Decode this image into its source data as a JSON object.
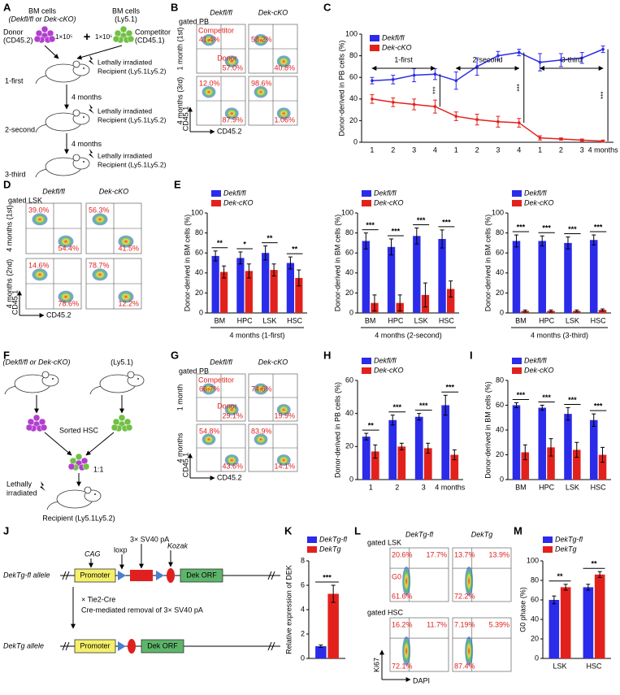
{
  "panel_labels": [
    "A",
    "B",
    "C",
    "D",
    "E",
    "F",
    "G",
    "H",
    "I",
    "J",
    "K",
    "L",
    "M"
  ],
  "diagram_a": {
    "donor_title": "BM cells",
    "donor_genotype": "(Dekfl/fl or Dek-cKO)",
    "donor_label": "Donor",
    "donor_marker": "(CD45.2)",
    "donor_dose": "1×10⁵",
    "plus": "+",
    "competitor_title": "BM cells",
    "competitor_strain": "(Ly5.1)",
    "competitor_dose": "1×10⁶",
    "competitor_label": "Competitor",
    "competitor_marker": "(CD45.1)",
    "steps": [
      {
        "label": "1-first",
        "irradiation": "Lethally irradiated",
        "recipient": "Recipient (Ly5.1Ly5.2)"
      },
      {
        "label": "2-second",
        "irradiation": "Lethally irradiated",
        "recipient": "Recipient (Ly5.1Ly5.2)"
      },
      {
        "label": "3-third",
        "irradiation": "Lethally irradiated",
        "recipient": "Recipient (Ly5.1Ly5.2)"
      }
    ],
    "intervals": [
      "4 months",
      "4 months"
    ]
  },
  "flow_b": {
    "gate": "gated PB",
    "columns": [
      "Dekfl/fl",
      "Dek-cKO"
    ],
    "competitor": "Competitor",
    "donor": "Donor",
    "y_axis": "CD45.1",
    "x_axis": "CD45.2",
    "rows": [
      {
        "label": "1 month (1st)",
        "percents": [
          [
            "41.4%",
            "57.0%"
          ],
          [
            "58.2%",
            "40.8%"
          ]
        ]
      },
      {
        "label": "4 months (3rd)",
        "percents": [
          [
            "12.0%",
            "87.9%"
          ],
          [
            "98.6%",
            "1.06%"
          ]
        ]
      }
    ]
  },
  "flow_d": {
    "gate": "gated LSK",
    "columns": [
      "Dekfl/fl",
      "Dek-cKO"
    ],
    "y_axis": "CD45.1",
    "x_axis": "CD45.2",
    "rows": [
      {
        "label": "4 months (1st)",
        "percents": [
          [
            "39.0%",
            "54.4%"
          ],
          [
            "56.3%",
            "41.5%"
          ]
        ]
      },
      {
        "label": "4 months (2nd)",
        "percents": [
          [
            "14.6%",
            "78.6%"
          ],
          [
            "78.7%",
            "12.2%"
          ]
        ]
      }
    ]
  },
  "diagram_f": {
    "donor_genotype": "(Dekfl/fl or Dek-cKO)",
    "competitor_strain": "(Ly5.1)",
    "sorted": "Sorted HSC",
    "ratio": "1:1",
    "irradiation_lines": [
      "Lethally",
      "irradiated"
    ],
    "recipient": "Recipient (Ly5.1Ly5.2)"
  },
  "flow_g": {
    "gate": "gated PB",
    "columns": [
      "Dekfl/fl",
      "Dek-cKO"
    ],
    "competitor": "Competitor",
    "donor": "Donor",
    "y_axis": "CD45.1",
    "x_axis": "CD45.2",
    "rows": [
      {
        "label": "1 month",
        "percents": [
          [
            "66.7%",
            "29.1%"
          ],
          [
            "74.6%",
            "19.9%"
          ]
        ]
      },
      {
        "label": "4 months",
        "percents": [
          [
            "54.8%",
            "43.6%"
          ],
          [
            "83.9%",
            "14.1%"
          ]
        ]
      }
    ]
  },
  "diagram_j": {
    "top_allele": "DekTg-fl allele",
    "bottom_allele": "DekTg allele",
    "promoter": "Promoter",
    "orf": "Dek ORF",
    "cag": "CAG",
    "loxp": "loxp",
    "stop": "3× SV40 pA",
    "kozak": "Kozak",
    "cre": "× Tie2-Cre",
    "removal": "Cre-mediated removal of 3× SV40 pA"
  },
  "flow_l": {
    "columns": [
      "DekTg-fl",
      "DekTg"
    ],
    "g0": "G0",
    "y_axis": "Ki67",
    "x_axis": "DAPI",
    "rows": [
      {
        "gate": "gated LSK",
        "percents": [
          [
            "20.6%",
            "17.7%",
            "61.6%"
          ],
          [
            "13.7%",
            "13.9%",
            "72.2%"
          ]
        ]
      },
      {
        "gate": "gated HSC",
        "percents": [
          [
            "16.2%",
            "11.7%",
            "72.1%"
          ],
          [
            "7.19%",
            "5.39%",
            "87.4%"
          ]
        ]
      }
    ]
  },
  "chart_data": [
    {
      "type": "line",
      "ylabel": "Donor-derived in PB cells (%)",
      "categories": [
        "1",
        "2",
        "3",
        "4",
        "1",
        "2",
        "3",
        "4",
        "1",
        "2",
        "3",
        "4 months"
      ],
      "series": [
        {
          "name": "Dekfl/fl",
          "color": "#2b2bea",
          "values": [
            57,
            58,
            62,
            63,
            57,
            70,
            80,
            83,
            74,
            76,
            78,
            86
          ],
          "errors": [
            3,
            4,
            6,
            5,
            8,
            8,
            4,
            3,
            8,
            6,
            5,
            3
          ]
        },
        {
          "name": "Dek-cKO",
          "color": "#e3211c",
          "values": [
            40,
            37,
            35,
            33,
            24,
            21,
            19,
            18,
            4,
            3,
            2,
            1
          ],
          "errors": [
            4,
            4,
            5,
            6,
            4,
            5,
            5,
            4,
            2,
            1,
            1,
            1
          ]
        }
      ],
      "ylim": [
        0,
        100
      ],
      "yticks": [
        0,
        20,
        40,
        60,
        80,
        100
      ],
      "periods": [
        "1-first",
        "2-second",
        "3-third"
      ],
      "significance": [
        "***",
        "***",
        "***"
      ]
    },
    {
      "type": "bar",
      "ylabel": "Donor-derived in BM cells (%)",
      "xlabel": "4 months (1-first)",
      "categories": [
        "BM",
        "HPC",
        "LSK",
        "HSC"
      ],
      "series": [
        {
          "name": "Dekfl/fl",
          "color": "#2b2bea",
          "values": [
            57,
            55,
            60,
            50
          ],
          "errors": [
            5,
            6,
            7,
            6
          ]
        },
        {
          "name": "Dek-cKO",
          "color": "#e3211c",
          "values": [
            41,
            42,
            43,
            35
          ],
          "errors": [
            6,
            7,
            6,
            8
          ]
        }
      ],
      "ylim": [
        0,
        100
      ],
      "yticks": [
        0,
        20,
        40,
        60,
        80,
        100
      ],
      "significance": [
        "**",
        "*",
        "**",
        "**"
      ]
    },
    {
      "type": "bar",
      "ylabel": "Donor-derived in BM cells (%)",
      "xlabel": "4 months (2-second)",
      "categories": [
        "BM",
        "HPC",
        "LSK",
        "HSC"
      ],
      "series": [
        {
          "name": "Dekfl/fl",
          "color": "#2b2bea",
          "values": [
            72,
            66,
            77,
            74
          ],
          "errors": [
            8,
            8,
            8,
            9
          ]
        },
        {
          "name": "Dek-cKO",
          "color": "#e3211c",
          "values": [
            10,
            10,
            18,
            24
          ],
          "errors": [
            8,
            8,
            12,
            8
          ]
        }
      ],
      "ylim": [
        0,
        100
      ],
      "yticks": [
        0,
        20,
        40,
        60,
        80,
        100
      ],
      "significance": [
        "***",
        "***",
        "***",
        "***"
      ]
    },
    {
      "type": "bar",
      "ylabel": "Donor-derived in BM cells (%)",
      "xlabel": "4 months (3-third)",
      "categories": [
        "BM",
        "HPC",
        "LSK",
        "HSC"
      ],
      "series": [
        {
          "name": "Dekfl/fl",
          "color": "#2b2bea",
          "values": [
            72,
            72,
            70,
            73
          ],
          "errors": [
            6,
            5,
            6,
            5
          ]
        },
        {
          "name": "Dek-cKO",
          "color": "#e3211c",
          "values": [
            2,
            2,
            2,
            3
          ],
          "errors": [
            1,
            1,
            1,
            1
          ]
        }
      ],
      "ylim": [
        0,
        100
      ],
      "yticks": [
        0,
        20,
        40,
        60,
        80,
        100
      ],
      "significance": [
        "***",
        "***",
        "***",
        "***"
      ]
    },
    {
      "type": "bar",
      "ylabel": "Donor-derived in PB cells (%)",
      "categories": [
        "1",
        "2",
        "3",
        "4 months"
      ],
      "series": [
        {
          "name": "Dekfl/fl",
          "color": "#2b2bea",
          "values": [
            26,
            36,
            38,
            45
          ],
          "errors": [
            2,
            3,
            2,
            6
          ]
        },
        {
          "name": "Dek-cKO",
          "color": "#e3211c",
          "values": [
            17,
            20,
            19,
            15
          ],
          "errors": [
            4,
            2,
            3,
            3
          ]
        }
      ],
      "ylim": [
        0,
        60
      ],
      "yticks": [
        0,
        20,
        40,
        60
      ],
      "significance": [
        "**",
        "***",
        "***",
        "***"
      ]
    },
    {
      "type": "bar",
      "ylabel": "Donor-derived in BM cells (%)",
      "categories": [
        "BM",
        "HPC",
        "LSK",
        "HSC"
      ],
      "series": [
        {
          "name": "Dekfl/fl",
          "color": "#2b2bea",
          "values": [
            60,
            58,
            53,
            48
          ],
          "errors": [
            2,
            2,
            5,
            5
          ]
        },
        {
          "name": "Dek-cKO",
          "color": "#e3211c",
          "values": [
            22,
            26,
            24,
            20
          ],
          "errors": [
            6,
            7,
            6,
            6
          ]
        }
      ],
      "ylim": [
        0,
        80
      ],
      "yticks": [
        0,
        20,
        40,
        60,
        80
      ],
      "significance": [
        "***",
        "***",
        "***",
        "***"
      ]
    },
    {
      "type": "bar",
      "ylabel": "Relative expression of DEK",
      "categories": [
        null
      ],
      "series": [
        {
          "name": "DekTg-fl",
          "color": "#2b2bea",
          "values": [
            1
          ],
          "errors": [
            0.1
          ]
        },
        {
          "name": "DekTg",
          "color": "#e3211c",
          "values": [
            5.3
          ],
          "errors": [
            0.7
          ]
        }
      ],
      "ylim": [
        0,
        8
      ],
      "yticks": [
        0,
        2,
        4,
        6,
        8
      ],
      "significance": [
        "***"
      ]
    },
    {
      "type": "bar",
      "ylabel": "G0 phase (%)",
      "categories": [
        "LSK",
        "HSC"
      ],
      "series": [
        {
          "name": "DekTg-fl",
          "color": "#2b2bea",
          "values": [
            60,
            73
          ],
          "errors": [
            4,
            3
          ]
        },
        {
          "name": "DekTg",
          "color": "#e3211c",
          "values": [
            73,
            86
          ],
          "errors": [
            3,
            3
          ]
        }
      ],
      "ylim": [
        0,
        100
      ],
      "yticks": [
        0,
        20,
        40,
        60,
        80,
        100
      ],
      "significance": [
        "**",
        "**"
      ]
    }
  ]
}
